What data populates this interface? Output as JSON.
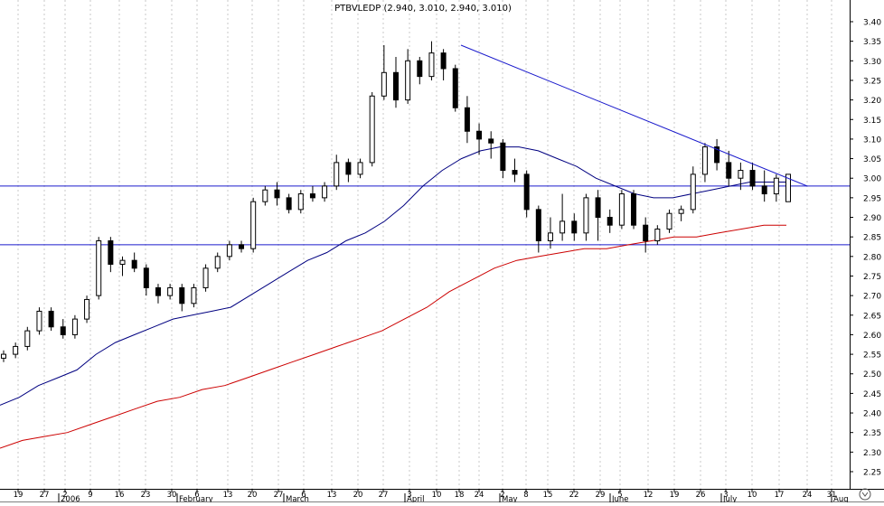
{
  "chart_data": {
    "type": "candlestick",
    "title": "PTBVLEDP (2.940, 3.010, 2.940, 3.010)",
    "y_axis": {
      "position": "right",
      "ylim": [
        2.23,
        3.43
      ],
      "ticks": [
        "3.40",
        "3.35",
        "3.30",
        "3.25",
        "3.20",
        "3.15",
        "3.10",
        "3.05",
        "3.00",
        "2.95",
        "2.90",
        "2.85",
        "2.80",
        "2.75",
        "2.70",
        "2.65",
        "2.60",
        "2.55",
        "2.50",
        "2.45",
        "2.40",
        "2.35",
        "2.30",
        "2.25"
      ]
    },
    "x_axis": {
      "day_labels": [
        "19",
        "27",
        "2",
        "9",
        "16",
        "23",
        "30",
        "6",
        "13",
        "20",
        "27",
        "6",
        "13",
        "20",
        "27",
        "3",
        "10",
        "18",
        "24",
        "2",
        "8",
        "15",
        "22",
        "29",
        "5",
        "12",
        "19",
        "26",
        "3",
        "10",
        "17",
        "24",
        "31"
      ],
      "month_labels": [
        "2006",
        "February",
        "March",
        "April",
        "May",
        "June",
        "July",
        "Aug"
      ]
    },
    "grid": "vertical dashed",
    "horizontal_levels": [
      2.98,
      2.83
    ],
    "trendline": {
      "from": {
        "x": "Apr 18",
        "y": 3.34
      },
      "to": {
        "x": "Jul 24",
        "y": 2.98
      }
    },
    "series": [
      {
        "kind": "moving-average-short",
        "color": "#000080",
        "values": [
          2.42,
          2.44,
          2.47,
          2.49,
          2.51,
          2.55,
          2.58,
          2.6,
          2.62,
          2.64,
          2.65,
          2.66,
          2.67,
          2.7,
          2.73,
          2.76,
          2.79,
          2.81,
          2.84,
          2.86,
          2.89,
          2.93,
          2.98,
          3.02,
          3.05,
          3.07,
          3.08,
          3.08,
          3.07,
          3.05,
          3.03,
          3.0,
          2.98,
          2.96,
          2.95,
          2.95,
          2.96,
          2.97,
          2.98,
          2.99,
          2.99,
          2.99
        ]
      },
      {
        "kind": "moving-average-long",
        "color": "#cc0000",
        "values": [
          2.31,
          2.33,
          2.34,
          2.35,
          2.37,
          2.39,
          2.41,
          2.43,
          2.44,
          2.46,
          2.47,
          2.49,
          2.51,
          2.53,
          2.55,
          2.57,
          2.59,
          2.61,
          2.64,
          2.67,
          2.71,
          2.74,
          2.77,
          2.79,
          2.8,
          2.81,
          2.82,
          2.82,
          2.83,
          2.84,
          2.85,
          2.85,
          2.86,
          2.87,
          2.88,
          2.88
        ]
      }
    ],
    "candles": [
      [
        2.54,
        2.56,
        2.53,
        2.55
      ],
      [
        2.55,
        2.58,
        2.54,
        2.57
      ],
      [
        2.57,
        2.62,
        2.56,
        2.61
      ],
      [
        2.61,
        2.67,
        2.6,
        2.66
      ],
      [
        2.66,
        2.67,
        2.61,
        2.62
      ],
      [
        2.62,
        2.64,
        2.59,
        2.6
      ],
      [
        2.6,
        2.65,
        2.59,
        2.64
      ],
      [
        2.64,
        2.7,
        2.63,
        2.69
      ],
      [
        2.7,
        2.85,
        2.69,
        2.84
      ],
      [
        2.84,
        2.85,
        2.76,
        2.78
      ],
      [
        2.78,
        2.8,
        2.75,
        2.79
      ],
      [
        2.79,
        2.81,
        2.76,
        2.77
      ],
      [
        2.77,
        2.78,
        2.7,
        2.72
      ],
      [
        2.72,
        2.73,
        2.68,
        2.7
      ],
      [
        2.7,
        2.73,
        2.69,
        2.72
      ],
      [
        2.72,
        2.73,
        2.66,
        2.68
      ],
      [
        2.68,
        2.73,
        2.67,
        2.72
      ],
      [
        2.72,
        2.78,
        2.71,
        2.77
      ],
      [
        2.77,
        2.81,
        2.76,
        2.8
      ],
      [
        2.8,
        2.84,
        2.79,
        2.83
      ],
      [
        2.83,
        2.84,
        2.81,
        2.82
      ],
      [
        2.82,
        2.95,
        2.81,
        2.94
      ],
      [
        2.94,
        2.98,
        2.93,
        2.97
      ],
      [
        2.97,
        2.99,
        2.93,
        2.95
      ],
      [
        2.95,
        2.96,
        2.91,
        2.92
      ],
      [
        2.92,
        2.97,
        2.91,
        2.96
      ],
      [
        2.96,
        2.98,
        2.94,
        2.95
      ],
      [
        2.95,
        2.99,
        2.94,
        2.98
      ],
      [
        2.98,
        3.06,
        2.97,
        3.04
      ],
      [
        3.04,
        3.05,
        2.99,
        3.01
      ],
      [
        3.01,
        3.05,
        3.0,
        3.04
      ],
      [
        3.04,
        3.22,
        3.03,
        3.21
      ],
      [
        3.21,
        3.34,
        3.2,
        3.27
      ],
      [
        3.27,
        3.31,
        3.18,
        3.2
      ],
      [
        3.2,
        3.33,
        3.19,
        3.3
      ],
      [
        3.3,
        3.31,
        3.24,
        3.26
      ],
      [
        3.26,
        3.35,
        3.25,
        3.32
      ],
      [
        3.32,
        3.33,
        3.25,
        3.28
      ],
      [
        3.28,
        3.29,
        3.17,
        3.18
      ],
      [
        3.18,
        3.21,
        3.09,
        3.12
      ],
      [
        3.12,
        3.14,
        3.06,
        3.1
      ],
      [
        3.1,
        3.12,
        3.05,
        3.09
      ],
      [
        3.09,
        3.1,
        3.0,
        3.02
      ],
      [
        3.02,
        3.05,
        2.99,
        3.01
      ],
      [
        3.01,
        3.02,
        2.9,
        2.92
      ],
      [
        2.92,
        2.93,
        2.81,
        2.84
      ],
      [
        2.84,
        2.9,
        2.82,
        2.86
      ],
      [
        2.86,
        2.96,
        2.84,
        2.89
      ],
      [
        2.89,
        2.91,
        2.84,
        2.86
      ],
      [
        2.86,
        2.96,
        2.84,
        2.95
      ],
      [
        2.95,
        2.97,
        2.84,
        2.9
      ],
      [
        2.9,
        2.92,
        2.86,
        2.88
      ],
      [
        2.88,
        2.97,
        2.87,
        2.96
      ],
      [
        2.96,
        2.97,
        2.87,
        2.88
      ],
      [
        2.88,
        2.9,
        2.81,
        2.84
      ],
      [
        2.84,
        2.88,
        2.83,
        2.87
      ],
      [
        2.87,
        2.92,
        2.86,
        2.91
      ],
      [
        2.91,
        2.93,
        2.89,
        2.92
      ],
      [
        2.92,
        3.03,
        2.91,
        3.01
      ],
      [
        3.01,
        3.09,
        2.99,
        3.08
      ],
      [
        3.08,
        3.1,
        3.02,
        3.04
      ],
      [
        3.04,
        3.07,
        2.98,
        3.0
      ],
      [
        3.0,
        3.04,
        2.97,
        3.02
      ],
      [
        3.02,
        3.04,
        2.97,
        2.98
      ],
      [
        2.98,
        3.02,
        2.94,
        2.96
      ],
      [
        2.96,
        3.01,
        2.94,
        3.0
      ],
      [
        2.94,
        3.01,
        2.94,
        3.01
      ]
    ]
  }
}
